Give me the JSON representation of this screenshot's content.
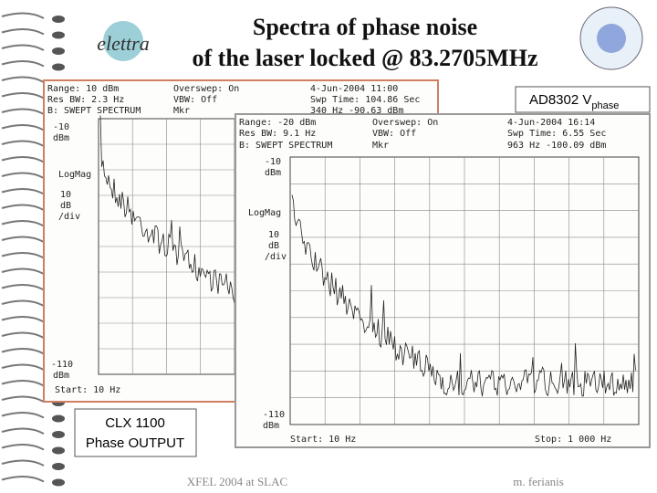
{
  "title": [
    "Spectra of phase noise",
    "of the laser locked @ 83.2705MHz"
  ],
  "logo": "elettra",
  "annotation_top": {
    "text": "AD8302 V",
    "subscript": "phase"
  },
  "annotation_bottom": [
    "CLX 1100",
    "Phase OUTPUT"
  ],
  "footer": {
    "left": "XFEL 2004 at SLAC",
    "right": "m. ferianis"
  },
  "plots": [
    {
      "header": [
        "Range: 10 dBm",
        "Overswep: On",
        "4-Jun-2004 11:00",
        "Res BW: 2.3 Hz",
        "VBW: Off",
        "Swp Time: 104.86 Sec",
        "B: SWEPT SPECTRUM",
        "Mkr",
        "340 Hz  -90.63 dBm"
      ],
      "axis_labels": [
        "-10",
        "dBm",
        "LogMag",
        "10",
        "dB",
        "/div",
        "-110",
        "dBm",
        "Start: 10 Hz"
      ]
    },
    {
      "header": [
        "Range: -20 dBm",
        "Overswep: On",
        "4-Jun-2004 16:14",
        "Res BW: 9.1 Hz",
        "VBW: Off",
        "Swp Time: 6.55 Sec",
        "B: SWEPT SPECTRUM",
        "Mkr",
        "963 Hz  -100.09 dBm"
      ],
      "axis_labels": [
        "-10",
        "dBm",
        "LogMag",
        "10",
        "dB",
        "/div",
        "-110",
        "dBm",
        "Start: 10 Hz",
        "Stop: 1 000 Hz"
      ]
    }
  ]
}
